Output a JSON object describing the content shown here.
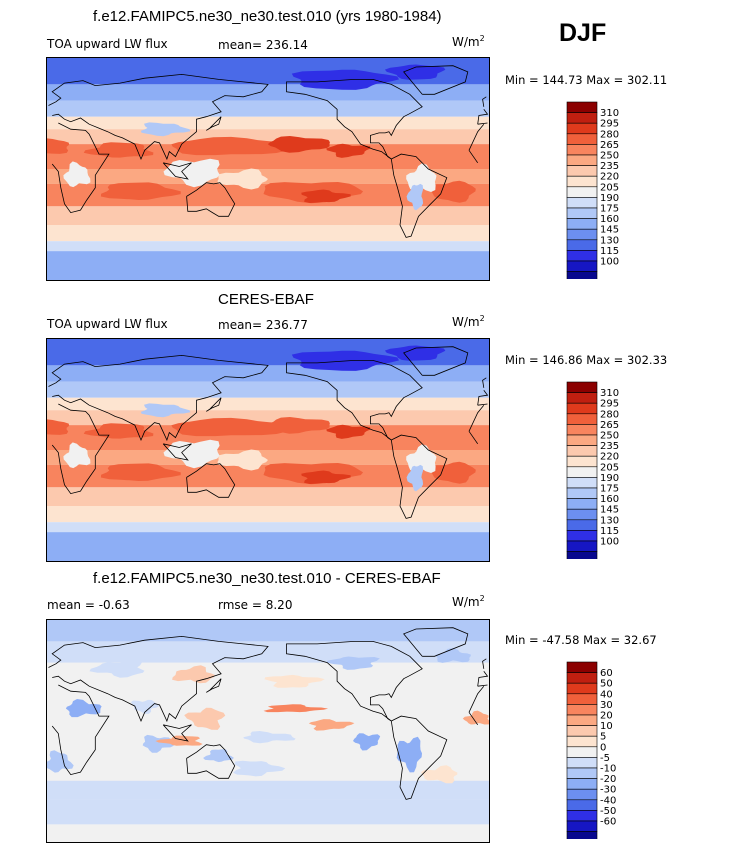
{
  "season": "DJF",
  "units_base": "W/m",
  "units_exp": "2",
  "colors": {
    "rdbu": [
      "#08088e",
      "#1616c4",
      "#2f2fe6",
      "#4a6ae8",
      "#6c8ff0",
      "#8daef5",
      "#b0c8f7",
      "#d0def8",
      "#f1f1f1",
      "#fde4d0",
      "#fcc9ae",
      "#fba882",
      "#f8845e",
      "#f0603b",
      "#df3a1c",
      "#c01f10",
      "#8b0000"
    ],
    "coast": "#000000"
  },
  "panels": [
    {
      "id": "model",
      "title": "f.e12.FAMIPC5.ne30_ne30.test.010 (yrs 1980-1984)",
      "left_label": "TOA upward LW flux",
      "stat": "mean=  236.14",
      "min_max": "Min = 144.73  Max = 302.11",
      "levels": [
        "310",
        "295",
        "280",
        "265",
        "250",
        "235",
        "220",
        "205",
        "190",
        "175",
        "160",
        "145",
        "130",
        "115",
        "100"
      ]
    },
    {
      "id": "obs",
      "title": "CERES-EBAF",
      "left_label": "TOA upward LW flux",
      "stat": "mean=  236.77",
      "min_max": "Min = 146.86  Max = 302.33",
      "levels": [
        "310",
        "295",
        "280",
        "265",
        "250",
        "235",
        "220",
        "205",
        "190",
        "175",
        "160",
        "145",
        "130",
        "115",
        "100"
      ]
    },
    {
      "id": "diff",
      "title": "f.e12.FAMIPC5.ne30_ne30.test.010 - CERES-EBAF",
      "left_label": "mean =   -0.63",
      "stat": "rmse =    8.20",
      "min_max": "Min = -47.58  Max =  32.67",
      "levels": [
        "60",
        "50",
        "40",
        "30",
        "20",
        "10",
        "5",
        "0",
        "-5",
        "-10",
        "-20",
        "-30",
        "-40",
        "-50",
        "-60"
      ]
    }
  ]
}
